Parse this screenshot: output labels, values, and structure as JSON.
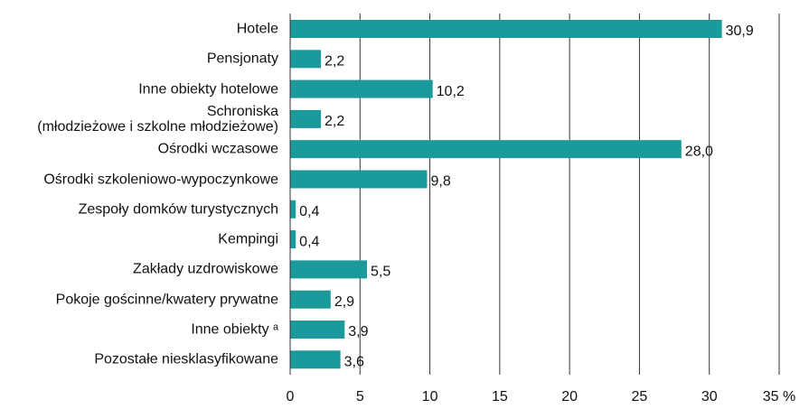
{
  "chart_data": {
    "type": "bar",
    "orientation": "horizontal",
    "categories": [
      "Hotele",
      "Pensjonaty",
      "Inne obiekty hotelowe",
      "Schroniska\n(młodzieżowe i szkolne młodzieżowe)",
      "Ośrodki wczasowe",
      "Ośrodki szkoleniowo-wypoczynkowe",
      "Zespoły domków turystycznych",
      "Kempingi",
      "Zakłady uzdrowiskowe",
      "Pokoje gościnne/kwatery prywatne",
      "Inne obiekty ᵃ",
      "Pozostałe niesklasyfikowane"
    ],
    "values": [
      30.9,
      2.2,
      10.2,
      2.2,
      28.0,
      9.8,
      0.4,
      0.4,
      5.5,
      2.9,
      3.9,
      3.6
    ],
    "value_labels": [
      "30,9",
      "2,2",
      "10,2",
      "2,2",
      "28,0",
      "9,8",
      "0,4",
      "0,4",
      "5,5",
      "2,9",
      "3,9",
      "3,6"
    ],
    "color": "#1a9a9b",
    "xlim": [
      0,
      35
    ],
    "xticks": [
      0,
      5,
      10,
      15,
      20,
      25,
      30,
      {
        "value": 35,
        "label": "35 %"
      }
    ],
    "grid": true
  }
}
